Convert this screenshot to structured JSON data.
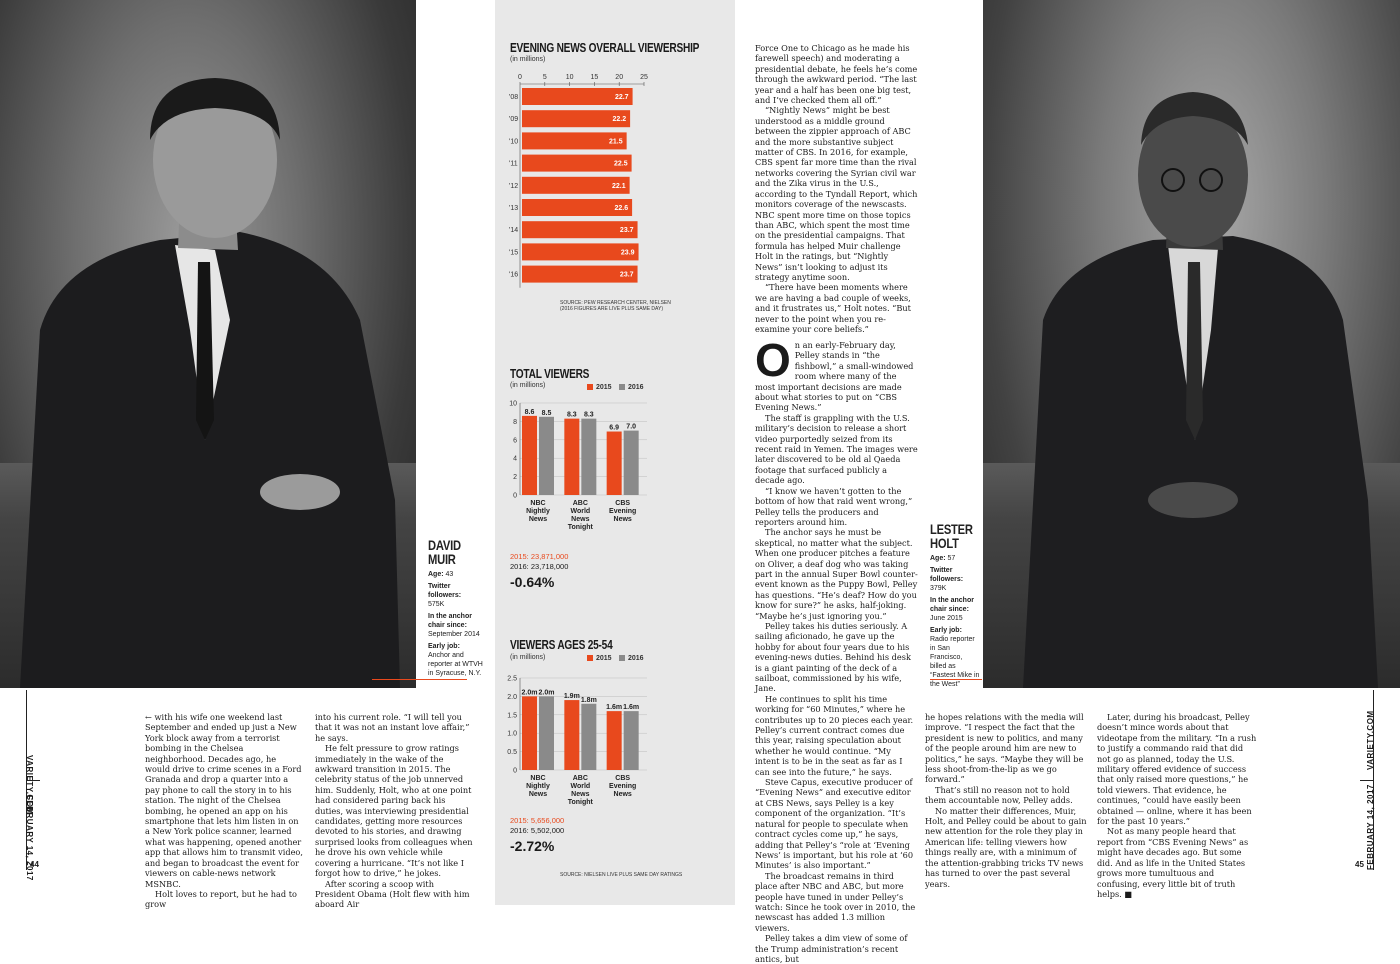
{
  "left_profile": {
    "name": "DAVID MUIR",
    "age_label": "Age:",
    "age": "43",
    "twitter_label": "Twitter followers:",
    "twitter": "575K",
    "chair_label": "In the anchor chair since:",
    "chair": "September 2014",
    "job_label": "Early job:",
    "job": "Anchor and reporter at WTVH in Syracuse, N.Y."
  },
  "right_profile": {
    "name_line1": "LESTER",
    "name_line2": "HOLT",
    "age_label": "Age:",
    "age": "57",
    "twitter_label": "Twitter followers:",
    "twitter": "379K",
    "chair_label": "In the anchor chair since:",
    "chair": "June 2015",
    "job_label": "Early job:",
    "job": "Radio reporter in San Francisco, billed as “Fastest Mike in the West”"
  },
  "chart_data": [
    {
      "type": "bar",
      "orientation": "horizontal",
      "title": "EVENING NEWS OVERALL VIEWERSHIP",
      "subtitle": "(in millions)",
      "categories": [
        "'08",
        "'09",
        "'10",
        "'11",
        "'12",
        "'13",
        "'14",
        "'15",
        "'16"
      ],
      "values": [
        22.7,
        22.2,
        21.5,
        22.5,
        22.1,
        22.6,
        23.7,
        23.9,
        23.7
      ],
      "xticks": [
        "0",
        "5",
        "10",
        "15",
        "20",
        "25"
      ],
      "xlim": [
        0,
        25
      ],
      "color": "#e8491d",
      "source": "SOURCE: PEW RESEARCH CENTER, NIELSEN",
      "source2": "(2016 FIGURES ARE LIVE PLUS SAME DAY)"
    },
    {
      "type": "bar",
      "title": "TOTAL VIEWERS",
      "subtitle": "(in millions)",
      "legend": [
        "2015",
        "2016"
      ],
      "colors": [
        "#e8491d",
        "#8a8a8a"
      ],
      "categories": [
        "NBC Nightly News",
        "ABC World News Tonight",
        "CBS Evening News"
      ],
      "category_lines": [
        [
          "NBC",
          "Nightly",
          "News"
        ],
        [
          "ABC",
          "World",
          "News",
          "Tonight"
        ],
        [
          "CBS",
          "Evening",
          "News"
        ]
      ],
      "series": [
        {
          "name": "2015",
          "values": [
            8.6,
            8.3,
            6.9
          ],
          "labels": [
            "8.6",
            "8.3",
            "6.9"
          ]
        },
        {
          "name": "2016",
          "values": [
            8.5,
            8.3,
            7.0
          ],
          "labels": [
            "8.5",
            "8.3",
            "7.0"
          ]
        }
      ],
      "yticks": [
        "0",
        "2",
        "4",
        "6",
        "8",
        "10"
      ],
      "ylim": [
        0,
        10
      ],
      "total_2015": "2015: 23,871,000",
      "total_2016": "2016: 23,718,000",
      "change": "-0.64%"
    },
    {
      "type": "bar",
      "title": "VIEWERS AGES 25-54",
      "subtitle": "(in millions)",
      "legend": [
        "2015",
        "2016"
      ],
      "colors": [
        "#e8491d",
        "#8a8a8a"
      ],
      "categories": [
        "NBC Nightly News",
        "ABC World News Tonight",
        "CBS Evening News"
      ],
      "category_lines": [
        [
          "NBC",
          "Nightly",
          "News"
        ],
        [
          "ABC",
          "World",
          "News",
          "Tonight"
        ],
        [
          "CBS",
          "Evening",
          "News"
        ]
      ],
      "series": [
        {
          "name": "2015",
          "values": [
            2.0,
            1.9,
            1.6
          ],
          "labels": [
            "2.0m",
            "1.9m",
            "1.6m"
          ]
        },
        {
          "name": "2016",
          "values": [
            2.0,
            1.8,
            1.6
          ],
          "labels": [
            "2.0m",
            "1.8m",
            "1.6m"
          ]
        }
      ],
      "yticks": [
        "0",
        "0.5",
        "1.0",
        "1.5",
        "2.0",
        "2.5"
      ],
      "ylim": [
        0,
        2.5
      ],
      "total_2015": "2015: 5,656,000",
      "total_2016": "2016: 5,502,000",
      "change": "-2.72%",
      "source": "SOURCE: NIELSEN LIVE PLUS SAME DAY RATINGS"
    }
  ],
  "folio": {
    "site": "VARIETY.COM",
    "date": "FEBRUARY 14, 2017",
    "page_left": "44",
    "page_right": "45"
  },
  "body": {
    "col1": "← with his wife one weekend last September and ended up just a New York block away from a terrorist bombing in the Chelsea neighborhood. Decades ago, he would drive to crime scenes in a Ford Granada and drop a quarter into a pay phone to call the story in to his station. The night of the Chelsea bombing, he opened an app on his smartphone that lets him listen in on a New York police scanner, learned what was happening, opened another app that allows him to transmit video, and began to broadcast the event for viewers on cable-news network MSNBC.",
    "col1b": "Holt loves to report, but he had to grow",
    "col2a": "into his current role. “I will tell you that it was not an instant love affair,” he says.",
    "col2b": "He felt pressure to grow ratings immediately in the wake of the awkward transition in 2015. The celebrity status of the job unnerved him. Suddenly, Holt, who at one point had considered paring back his duties, was interviewing presidential candidates, getting more resources devoted to his stories, and drawing surprised looks from colleagues when he drove his own vehicle while covering a hurricane. “It’s not like I forgot how to drive,” he jokes.",
    "col2c": "After scoring a scoop with President Obama (Holt flew with him aboard Air",
    "col3a": "Force One to Chicago as he made his farewell speech) and moderating a presidential debate, he feels he’s come through the awkward period. “The last year and a half has been one big test, and I’ve checked them all off.”",
    "col3b": "“Nightly News” might be best understood as a middle ground between the zippier approach of ABC and the more substantive subject matter of CBS. In 2016, for example, CBS spent far more time than the rival networks covering the Syrian civil war and the Zika virus in the U.S., according to the Tyndall Report, which monitors coverage of the newscasts. NBC spent more time on those topics than ABC, which spent the most time on the presidential campaigns. That formula has helped Muir challenge Holt in the ratings, but “Nightly News” isn’t looking to adjust its strategy anytime soon.",
    "col3c": "“There have been moments where we are having a bad couple of weeks, and it frustrates us,” Holt notes. “But never to the point when you re-examine your core beliefs.”",
    "col3_drop": "O",
    "col3d": "n an early-February day, Pelley stands in “the fishbowl,” a small-windowed room where many of the most important decisions are made about what stories to put on “CBS Evening News.”",
    "col3e": "The staff is grappling with the U.S. military’s decision to release a short video purportedly seized from its recent raid in Yemen. The images were later discovered to be old al Qaeda footage that surfaced publicly a decade ago.",
    "col3f": "“I know we haven’t gotten to the bottom of how that raid went wrong,” Pelley tells the producers and reporters around him.",
    "col3g": "The anchor says he must be skeptical, no matter what the subject. When one producer pitches a feature on Oliver, a deaf dog who was taking part in the annual Super Bowl counter-event known as the Puppy Bowl, Pelley has questions. “He’s deaf? How do you know for sure?” he asks, half-joking. “Maybe he’s just ignoring you.”",
    "col3h": "Pelley takes his duties seriously. A sailing aficionado, he gave up the hobby for about four years due to his evening-news duties. Behind his desk is a giant painting of the deck of a sailboat, commissioned by his wife, Jane.",
    "col3i": "He continues to split his time working for “60 Minutes,” where he contributes up to 20 pieces each year. Pelley’s current contract comes due this year, raising speculation about whether he would continue. “My intent is to be in the seat as far as I can see into the future,” he says.",
    "col3j": "Steve Capus, executive producer of “Evening News” and executive editor at CBS News, says Pelley is a key component of the organization. “It’s natural for people to speculate when contract cycles come up,” he says, adding that Pelley’s “role at ‘Evening News’ is important, but his role at ‘60 Minutes’ is also important.”",
    "col3k": "The broadcast remains in third place after NBC and ABC, but more people have tuned in under Pelley’s watch: Since he took over in 2010, the newscast has added 1.3 million viewers.",
    "col3l": "Pelley takes a dim view of some of the Trump administration’s recent antics, but",
    "col4a": "he hopes relations with the media will improve. “I respect the fact that the president is new to politics, and many of the people around him are new to politics,” he says. “Maybe they will be less shoot-from-the-lip as we go forward.”",
    "col4b": "That’s still no reason not to hold them accountable now, Pelley adds.",
    "col4c": "No matter their differences, Muir, Holt, and Pelley could be about to gain new attention for the role they play in American life: telling viewers how things really are, with a minimum of the attention-grabbing tricks TV news has turned to over the past several years.",
    "col5a": "Later, during his broadcast, Pelley doesn’t mince words about that videotape from the military. “In a rush to justify a commando raid that did not go as planned, today the U.S. military offered evidence of success that only raised more questions,” he told viewers. That evidence, he continues, “could have easily been obtained — online, where it has been for the past 10 years.”",
    "col5b": "Not as many people heard that report from “CBS Evening News” as might have decades ago. But some did. And as life in the United States grows more tumultuous and confusing, every little bit of truth helps.",
    "end_mark": "■"
  }
}
